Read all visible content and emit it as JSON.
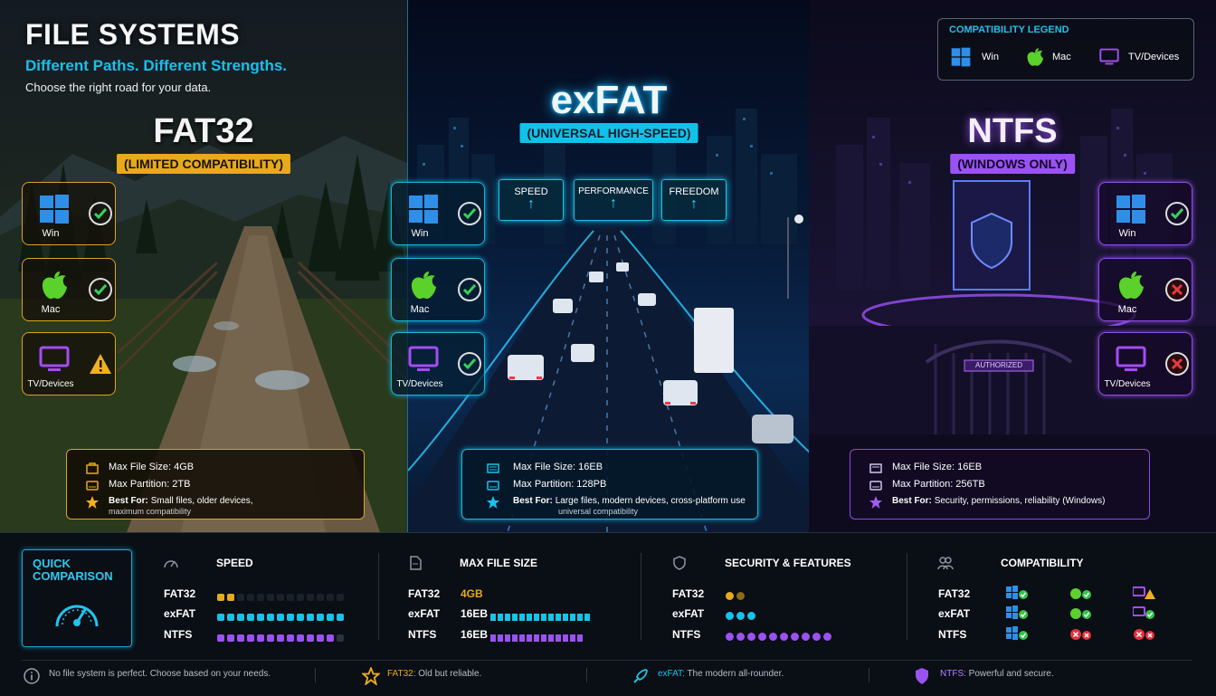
{
  "header": {
    "title": "FILE SYSTEMS",
    "subtitle": "Different Paths. Different Strengths.",
    "tagline": "Choose the right road for your data."
  },
  "legend": {
    "title": "COMPATIBILITY LEGEND",
    "items": [
      {
        "label": "Win",
        "icon": "windows-icon"
      },
      {
        "label": "Mac",
        "icon": "apple-icon"
      },
      {
        "label": "TV/Devices",
        "icon": "tv-icon"
      }
    ]
  },
  "colors": {
    "fat32": "#e8a91c",
    "exfat": "#16c3ea",
    "ntfs": "#9a52f2",
    "check": "#35c44c",
    "cross": "#e0333a"
  },
  "systems": {
    "fat32": {
      "name": "FAT32",
      "tag": "(LIMITED COMPATIBILITY)",
      "compat": [
        {
          "label": "Win",
          "status": "supported"
        },
        {
          "label": "Mac",
          "status": "supported"
        },
        {
          "label": "TV/Devices",
          "status": "warning"
        }
      ],
      "max_file_size": "Max File Size: 4GB",
      "max_partition": "Max Partition: 2TB",
      "best_for_label": "Best For:",
      "best_for": "Small files, older devices,",
      "best_for_2": "maximum compatibility"
    },
    "exfat": {
      "name": "exFAT",
      "tag": "(UNIVERSAL HIGH-SPEED)",
      "features": [
        "SPEED",
        "PERFORMANCE",
        "FREEDOM"
      ],
      "compat": [
        {
          "label": "Win",
          "status": "supported"
        },
        {
          "label": "Mac",
          "status": "supported"
        },
        {
          "label": "TV/Devices",
          "status": "supported"
        }
      ],
      "max_file_size": "Max File Size: 16EB",
      "max_partition": "Max Partition: 128PB",
      "best_for_label": "Best For:",
      "best_for": "Large files, modern devices, cross-platform use",
      "best_for_2": "universal compatibility"
    },
    "ntfs": {
      "name": "NTFS",
      "tag": "(WINDOWS ONLY)",
      "gate_sign": "AUTHORIZED",
      "compat": [
        {
          "label": "Win",
          "status": "supported"
        },
        {
          "label": "Mac",
          "status": "unsupported"
        },
        {
          "label": "TV/Devices",
          "status": "unsupported"
        }
      ],
      "max_file_size": "Max File Size: 16EB",
      "max_partition": "Max Partition: 256TB",
      "best_for_label": "Best For:",
      "best_for": "Security, permissions, reliability (Windows)"
    }
  },
  "quick_comparison": {
    "title_1": "QUICK",
    "title_2": "COMPARISON",
    "names": [
      "FAT32",
      "exFAT",
      "NTFS"
    ],
    "speed": {
      "header": "SPEED",
      "levels": [
        3,
        13,
        13
      ],
      "total": 13,
      "filled": [
        2,
        13,
        12
      ]
    },
    "max_file_size": {
      "header": "MAX FILE SIZE",
      "values": [
        "4GB",
        "16EB",
        "16EB"
      ],
      "bar_levels": [
        0,
        14,
        13
      ]
    },
    "security": {
      "header": "SECURITY & FEATURES",
      "filled": [
        2,
        3,
        10
      ]
    },
    "compatibility": {
      "header": "COMPATIBILITY",
      "rows": [
        [
          "supported",
          "supported",
          "warning"
        ],
        [
          "supported",
          "supported",
          "supported"
        ],
        [
          "supported",
          "unsupported",
          "unsupported"
        ]
      ]
    }
  },
  "footer": {
    "note": "No file system is perfect. Choose based on your needs.",
    "fat32_label": "FAT32:",
    "fat32_text": "Old but reliable.",
    "exfat_label": "exFAT:",
    "exfat_text": "The modern all-rounder.",
    "ntfs_label": "NTFS:",
    "ntfs_text": "Powerful and secure."
  }
}
